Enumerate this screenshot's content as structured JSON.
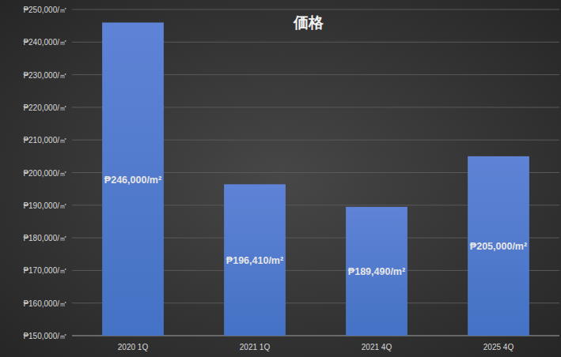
{
  "chart_data": {
    "type": "bar",
    "title": "価格",
    "categories": [
      "2020 1Q",
      "2021 1Q",
      "2021 4Q",
      "2025 4Q"
    ],
    "values": [
      246000,
      196410,
      189490,
      205000
    ],
    "value_labels": [
      "₱246,000/m²",
      "₱196,410/m²",
      "₱189,490/m²",
      "₱205,000/m²"
    ],
    "color": "#4472c4",
    "data_labels": true,
    "grid": true,
    "ylim": [
      150000,
      250000
    ],
    "yticks": [
      {
        "value": 150000,
        "label": "₱150,000/㎡"
      },
      {
        "value": 160000,
        "label": "₱160,000/㎡"
      },
      {
        "value": 170000,
        "label": "₱170,000/㎡"
      },
      {
        "value": 180000,
        "label": "₱180,000/㎡"
      },
      {
        "value": 190000,
        "label": "₱190,000/㎡"
      },
      {
        "value": 200000,
        "label": "₱200,000/㎡"
      },
      {
        "value": 210000,
        "label": "₱210,000/㎡"
      },
      {
        "value": 220000,
        "label": "₱220,000/㎡"
      },
      {
        "value": 230000,
        "label": "₱230,000/㎡"
      },
      {
        "value": 240000,
        "label": "₱240,000/㎡"
      },
      {
        "value": 250000,
        "label": "₱250,000/㎡"
      }
    ]
  }
}
